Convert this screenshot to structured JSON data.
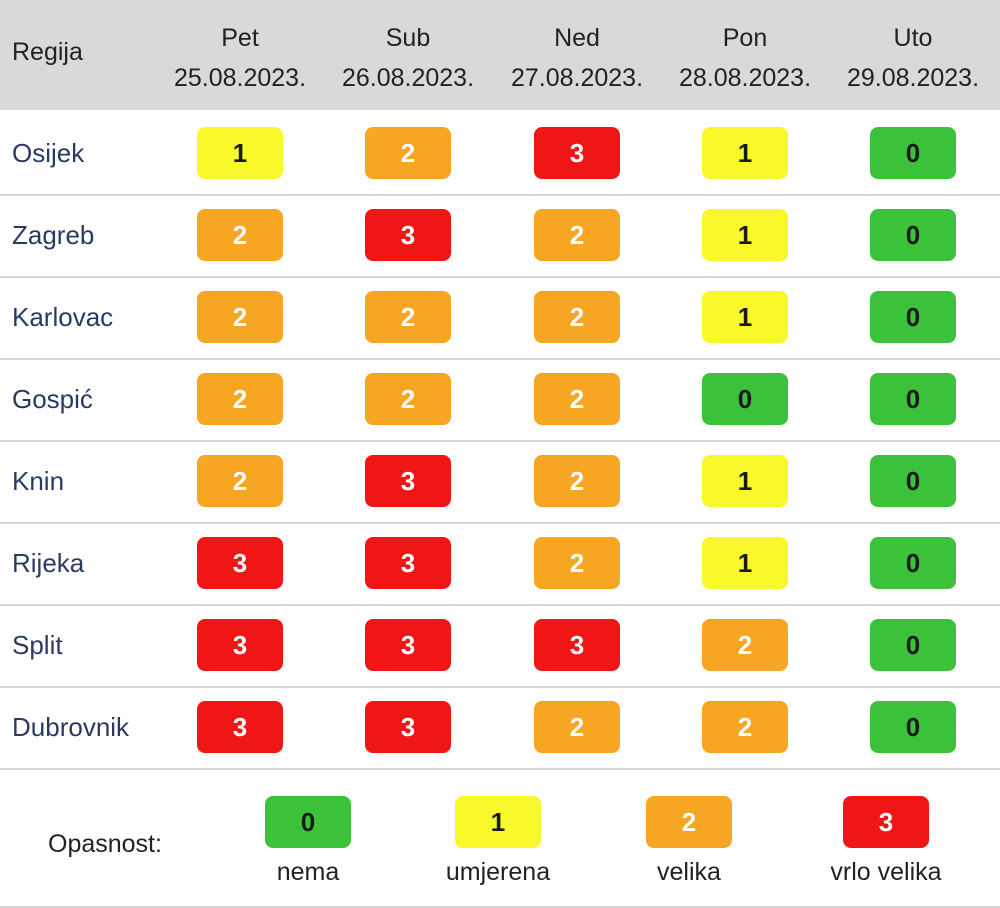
{
  "header": {
    "region_label": "Regija",
    "days": [
      {
        "name": "Pet",
        "date": "25.08.2023."
      },
      {
        "name": "Sub",
        "date": "26.08.2023."
      },
      {
        "name": "Ned",
        "date": "27.08.2023."
      },
      {
        "name": "Pon",
        "date": "28.08.2023."
      },
      {
        "name": "Uto",
        "date": "29.08.2023."
      }
    ]
  },
  "rows": [
    {
      "region": "Osijek",
      "levels": [
        "1",
        "2",
        "3",
        "1",
        "0"
      ]
    },
    {
      "region": "Zagreb",
      "levels": [
        "2",
        "3",
        "2",
        "1",
        "0"
      ]
    },
    {
      "region": "Karlovac",
      "levels": [
        "2",
        "2",
        "2",
        "1",
        "0"
      ]
    },
    {
      "region": "Gospić",
      "levels": [
        "2",
        "2",
        "2",
        "0",
        "0"
      ]
    },
    {
      "region": "Knin",
      "levels": [
        "2",
        "3",
        "2",
        "1",
        "0"
      ]
    },
    {
      "region": "Rijeka",
      "levels": [
        "3",
        "3",
        "2",
        "1",
        "0"
      ]
    },
    {
      "region": "Split",
      "levels": [
        "3",
        "3",
        "3",
        "2",
        "0"
      ]
    },
    {
      "region": "Dubrovnik",
      "levels": [
        "3",
        "3",
        "2",
        "2",
        "0"
      ]
    }
  ],
  "legend": {
    "title": "Opasnost:",
    "items": [
      {
        "level": "0",
        "label": "nema"
      },
      {
        "level": "1",
        "label": "umjerena"
      },
      {
        "level": "2",
        "label": "velika"
      },
      {
        "level": "3",
        "label": "vrlo velika"
      }
    ]
  },
  "level_colors": {
    "0": {
      "bg": "#3cc23a",
      "fg": "#1a1a1a"
    },
    "1": {
      "bg": "#f8f82a",
      "fg": "#1a1a1a"
    },
    "2": {
      "bg": "#f7a623",
      "fg": "#ffffff"
    },
    "3": {
      "bg": "#f01616",
      "fg": "#ffffff"
    }
  }
}
